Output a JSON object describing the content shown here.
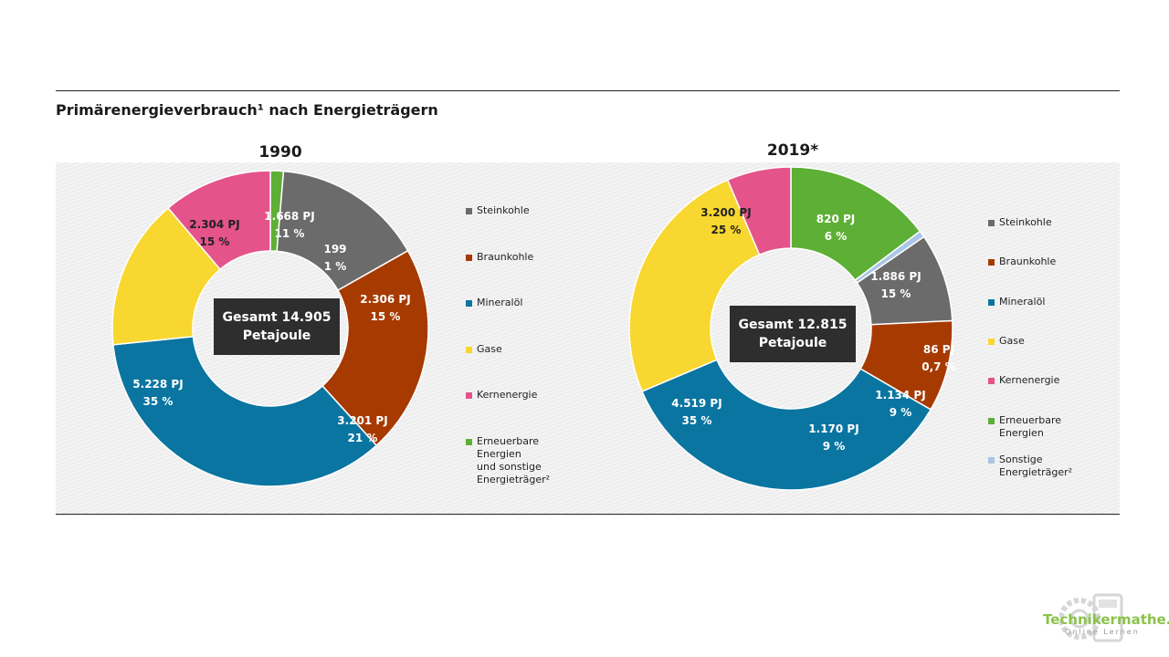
{
  "title": "Primärenergieverbrauch¹ nach Energieträgern",
  "colors": {
    "steinkohle": "#6b6b6b",
    "braunkohle": "#a63a00",
    "mineraloel": "#0a75a0",
    "gase": "#f8d730",
    "kernenergie": "#e45389",
    "erneuerbare": "#5daf35",
    "sonstige": "#a9c6e6"
  },
  "chart_data": [
    {
      "type": "pie",
      "title": "1990",
      "total_label": "Gesamt 14.905",
      "total_unit": "Petajoule",
      "series": [
        {
          "key": "erneuerbare",
          "value": 199,
          "value_label": "199",
          "percent_label": "1 %"
        },
        {
          "key": "steinkohle",
          "value": 2306,
          "value_label": "2.306 PJ",
          "percent_label": "15 %"
        },
        {
          "key": "braunkohle",
          "value": 3201,
          "value_label": "3.201 PJ",
          "percent_label": "21 %"
        },
        {
          "key": "mineraloel",
          "value": 5228,
          "value_label": "5.228 PJ",
          "percent_label": "35 %"
        },
        {
          "key": "gase",
          "value": 2304,
          "value_label": "2.304 PJ",
          "percent_label": "15 %"
        },
        {
          "key": "kernenergie",
          "value": 1668,
          "value_label": "1.668 PJ",
          "percent_label": "11 %"
        }
      ],
      "legend": [
        {
          "key": "steinkohle",
          "label": "Steinkohle"
        },
        {
          "key": "braunkohle",
          "label": "Braunkohle"
        },
        {
          "key": "mineraloel",
          "label": "Mineralöl"
        },
        {
          "key": "gase",
          "label": "Gase"
        },
        {
          "key": "kernenergie",
          "label": "Kernenergie"
        },
        {
          "key": "erneuerbare",
          "label": "Erneuerbare Energien\nund sonstige\nEnergieträger²"
        }
      ]
    },
    {
      "type": "pie",
      "title": "2019*",
      "total_label": "Gesamt 12.815",
      "total_unit": "Petajoule",
      "series": [
        {
          "key": "erneuerbare",
          "value": 1886,
          "value_label": "1.886 PJ",
          "percent_label": "15 %"
        },
        {
          "key": "sonstige",
          "value": 86,
          "value_label": "86 PJ",
          "percent_label": "0,7 %"
        },
        {
          "key": "steinkohle",
          "value": 1134,
          "value_label": "1.134 PJ",
          "percent_label": "9 %"
        },
        {
          "key": "braunkohle",
          "value": 1170,
          "value_label": "1.170 PJ",
          "percent_label": "9 %"
        },
        {
          "key": "mineraloel",
          "value": 4519,
          "value_label": "4.519 PJ",
          "percent_label": "35 %"
        },
        {
          "key": "gase",
          "value": 3200,
          "value_label": "3.200 PJ",
          "percent_label": "25 %"
        },
        {
          "key": "kernenergie",
          "value": 820,
          "value_label": "820 PJ",
          "percent_label": "6 %"
        }
      ],
      "legend": [
        {
          "key": "steinkohle",
          "label": "Steinkohle"
        },
        {
          "key": "braunkohle",
          "label": "Braunkohle"
        },
        {
          "key": "mineraloel",
          "label": "Mineralöl"
        },
        {
          "key": "gase",
          "label": "Gase"
        },
        {
          "key": "kernenergie",
          "label": "Kernenergie"
        },
        {
          "key": "erneuerbare",
          "label": "Erneuerbare Energien"
        },
        {
          "key": "sonstige",
          "label": "Sonstige Energieträger²"
        }
      ]
    }
  ],
  "watermark": {
    "text": "Technikermathe.de",
    "subtext": "Online Lernen",
    "icon": "gear-calculator-icon"
  }
}
